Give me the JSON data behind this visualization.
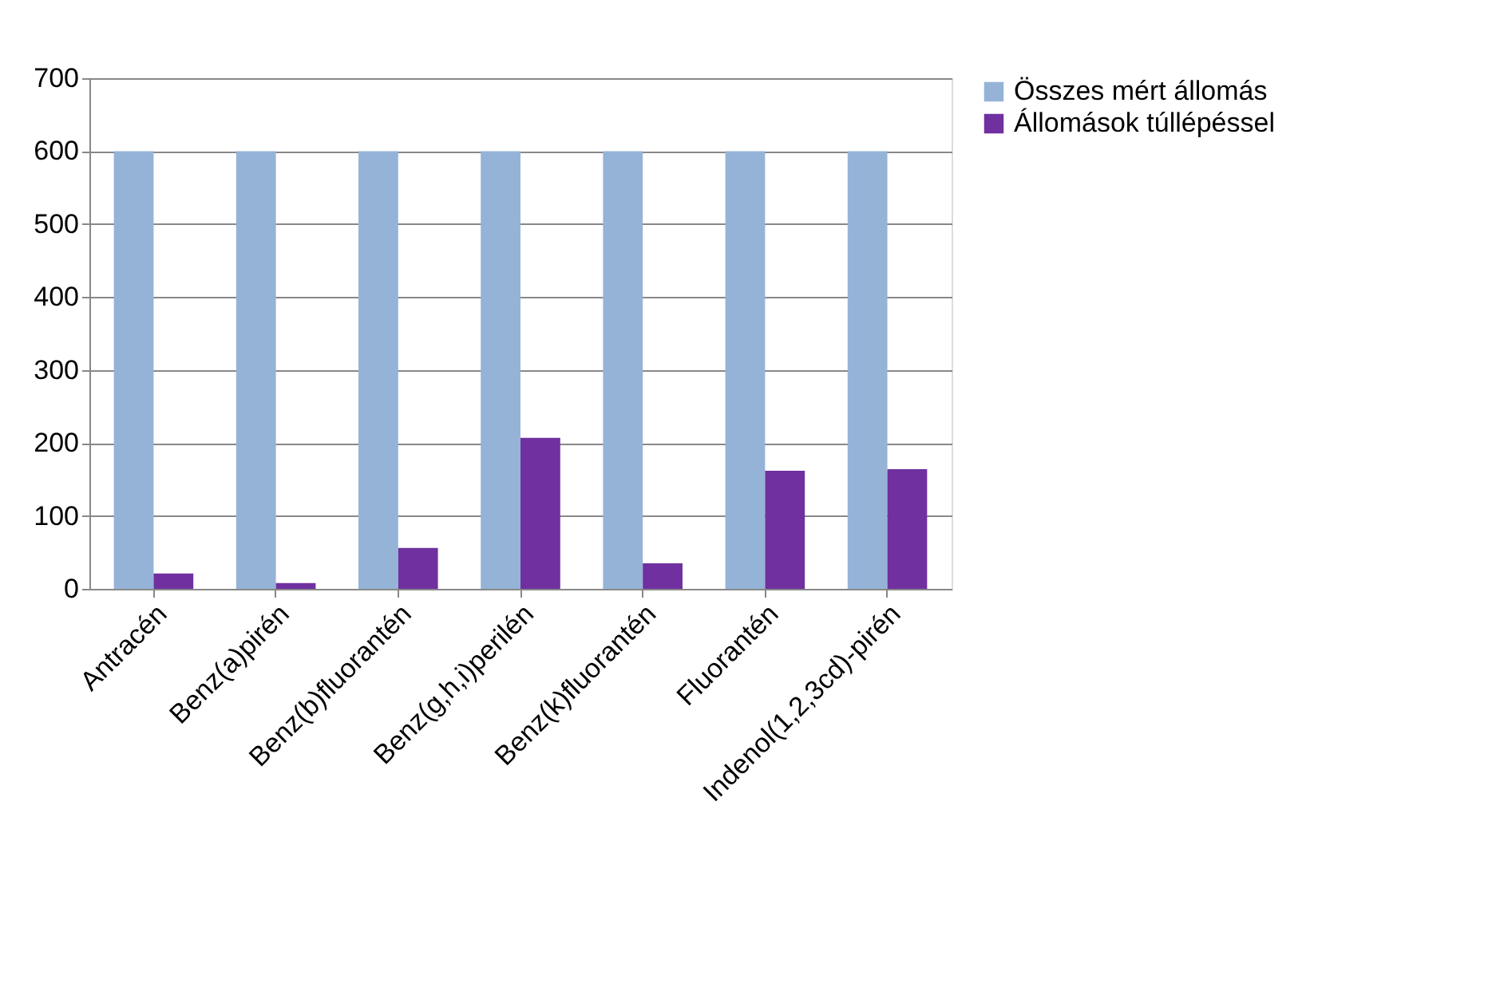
{
  "chart_data": {
    "type": "bar",
    "categories": [
      "Antracén",
      "Benz(a)pirén",
      "Benz(b)fluorantén",
      "Benz(g,h,i)perilén",
      "Benz(k)fluorantén",
      "Fluorantén",
      "Indenol(1,2,3cd)-pirén"
    ],
    "series": [
      {
        "name": "Összes mért állomás",
        "color": "#95b3d7",
        "values": [
          600,
          600,
          600,
          600,
          600,
          600,
          600
        ]
      },
      {
        "name": "Állomások túllépéssel",
        "color": "#7030a0",
        "values": [
          21,
          8,
          56,
          207,
          35,
          162,
          164
        ]
      }
    ],
    "ylim": [
      0,
      700
    ],
    "yticks": [
      0,
      100,
      200,
      300,
      400,
      500,
      600,
      700
    ],
    "grid": "y",
    "legend": "right"
  }
}
